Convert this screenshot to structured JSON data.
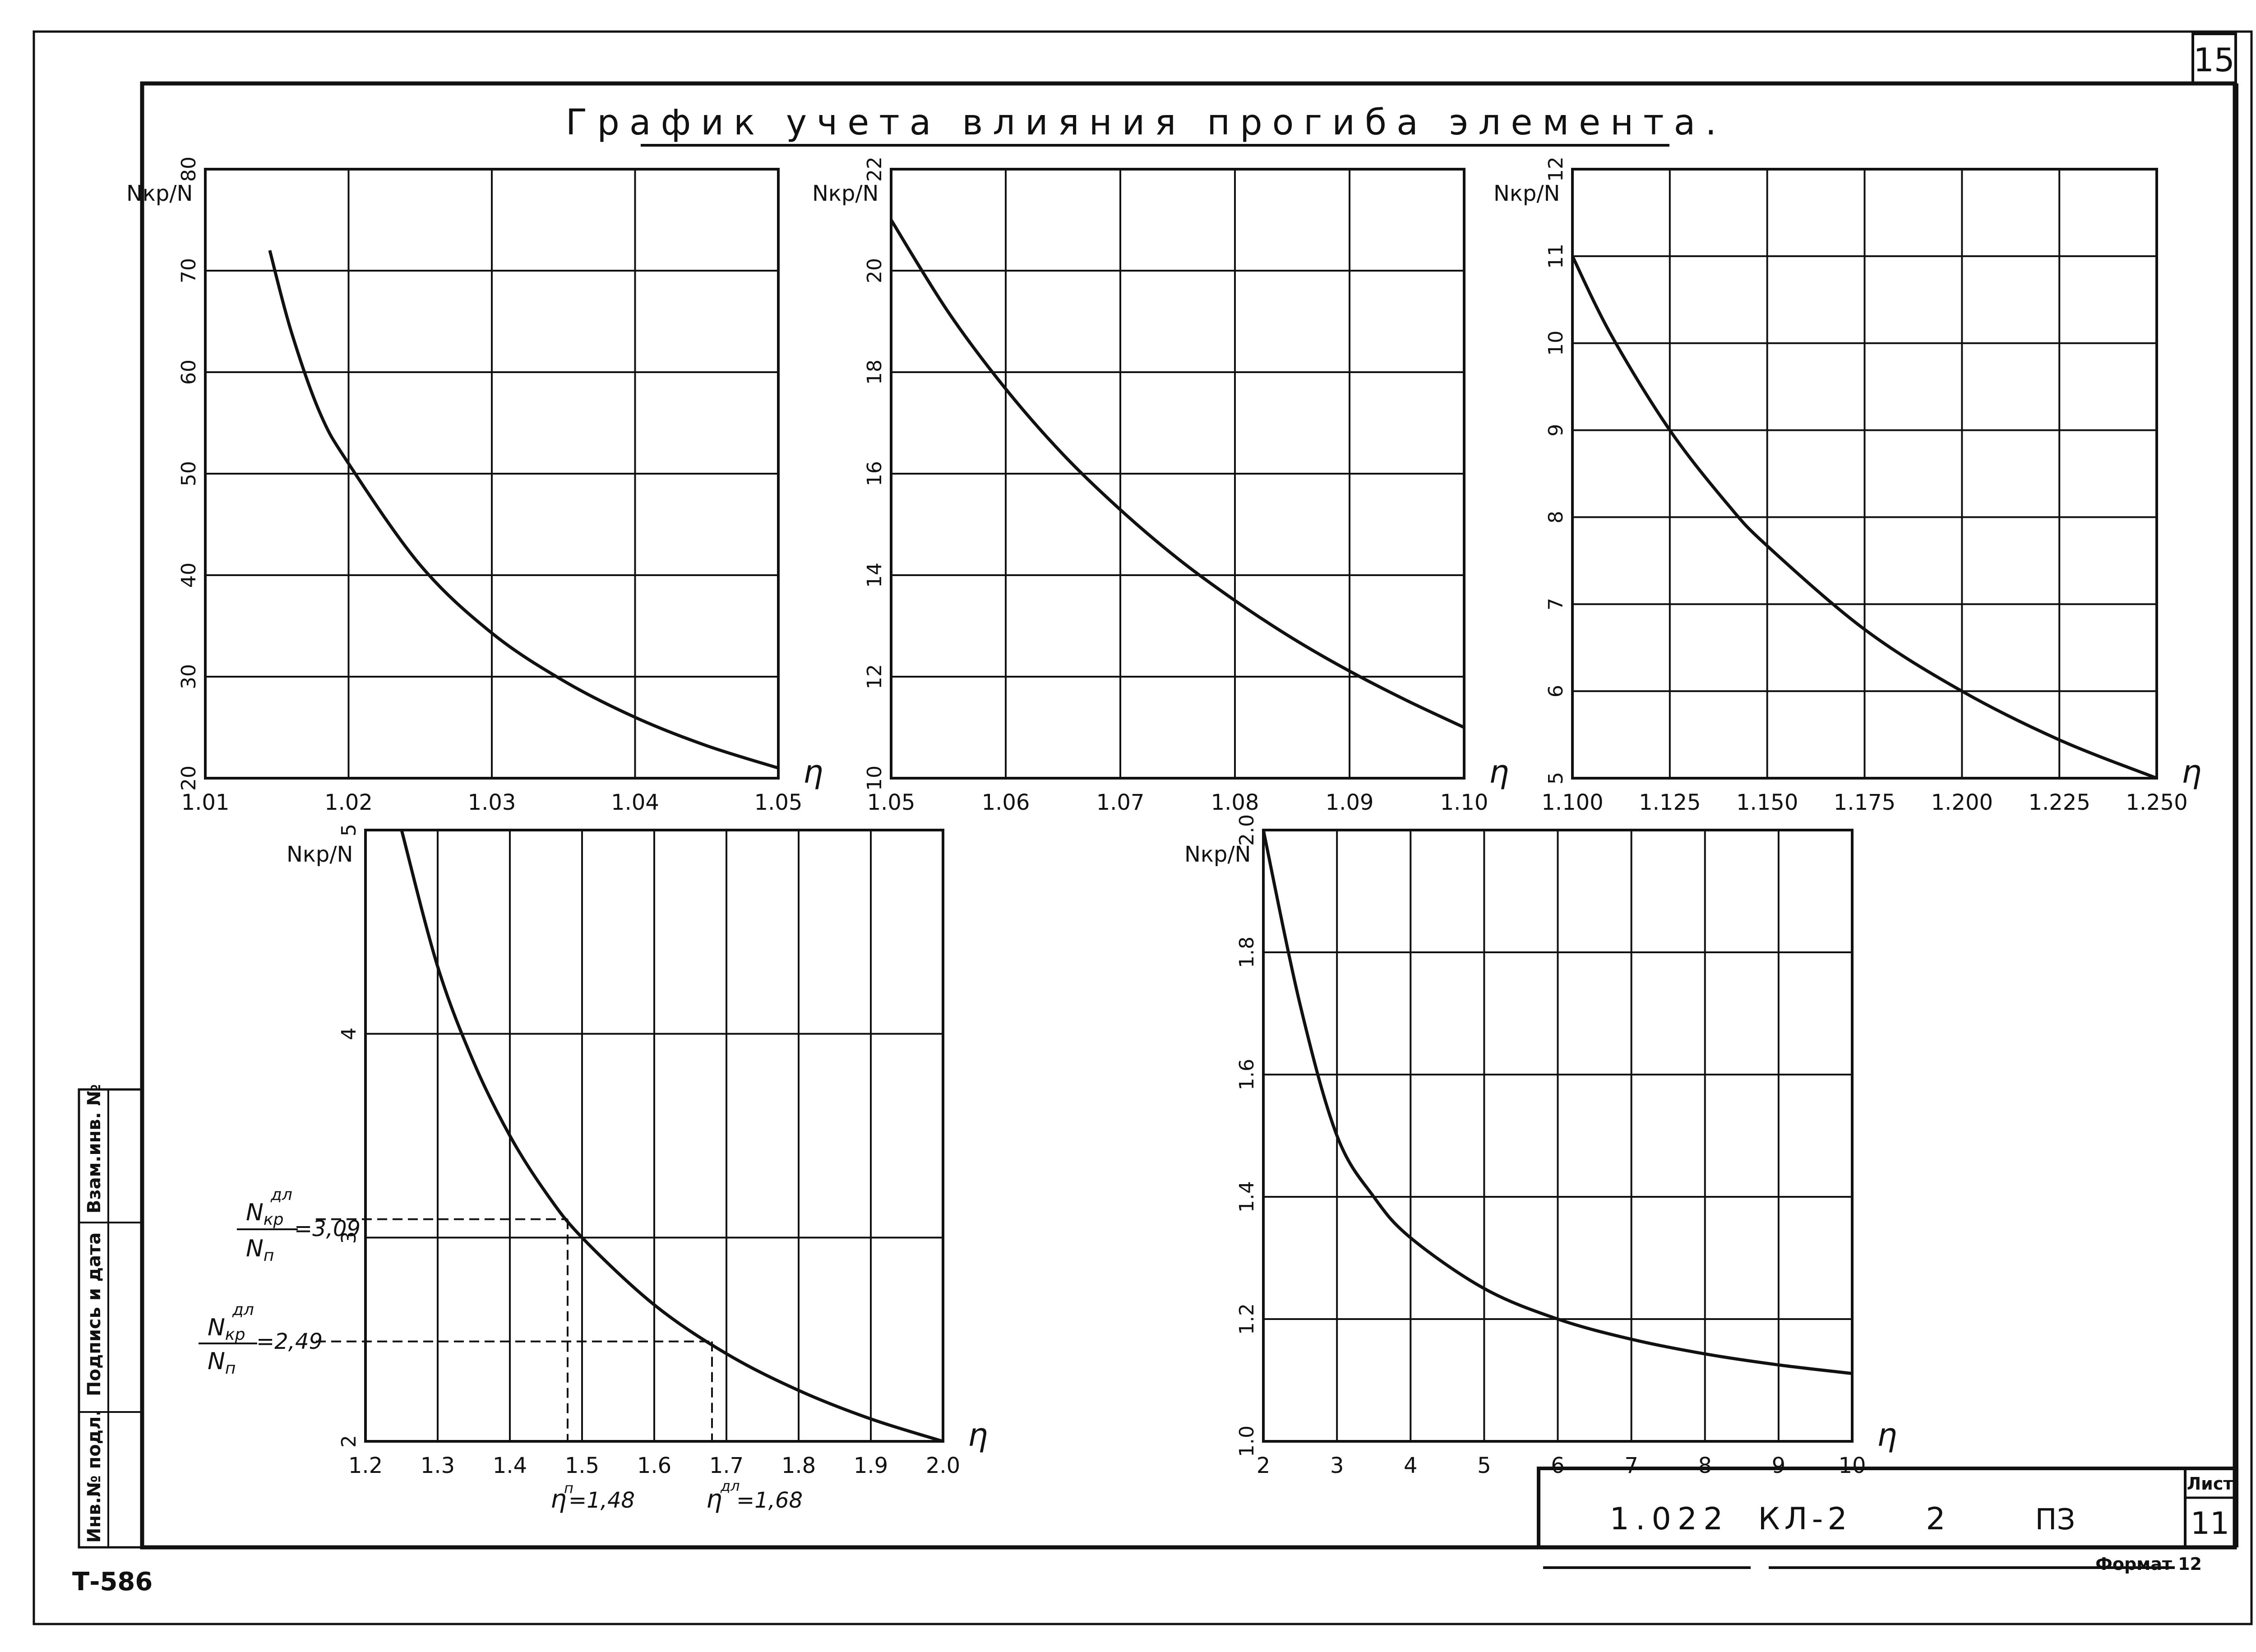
{
  "sheet": {
    "title": "График учета влияния прогиба элемента.",
    "page_number": "15",
    "doc_code_left": "Т-586",
    "format_label": "Формат 12",
    "stamp": {
      "code": "1.022",
      "series": "КЛ-2",
      "issue": "2",
      "doc_type": "ПЗ",
      "sheet_label": "Лист",
      "sheet_no": "11"
    },
    "side_stamp": {
      "inv_podl": "Инв.№ подл.",
      "podpis": "Подпись и дата",
      "vzam": "Взам.инв. №"
    },
    "annotations": {
      "ratio1_label": "=3,09",
      "ratio1_num": "N",
      "ratio1_num_sub": "кр",
      "ratio1_num_sup": "дл",
      "ratio1_den": "N",
      "ratio1_den_sub": "п",
      "ratio2_label": "=2,49",
      "ratio2_num": "N",
      "ratio2_num_sub": "кр",
      "ratio2_num_sup": "дл",
      "ratio2_den": "N",
      "ratio2_den_sub": "п",
      "eta1_label": "=1,48",
      "eta1_sym": "η",
      "eta1_sup": "п",
      "eta2_label": "=1,68",
      "eta2_sym": "η",
      "eta2_sup": "дл"
    },
    "colors": {
      "ink": "#111111",
      "paper": "#ffffff"
    }
  },
  "chart_data": [
    {
      "type": "line",
      "ylabel": "Nкр/N",
      "xlabel": "η",
      "xlim": [
        1.01,
        1.05
      ],
      "ylim": [
        20,
        80
      ],
      "xticks": [
        1.01,
        1.02,
        1.03,
        1.04,
        1.05
      ],
      "xtick_labels": [
        "1.01",
        "1.02",
        "1.03",
        "1.04",
        "1.05"
      ],
      "yticks": [
        20,
        30,
        40,
        50,
        60,
        70,
        80
      ],
      "ytick_labels": [
        "20",
        "30",
        "40",
        "50",
        "60",
        "70",
        "80"
      ],
      "grid": true,
      "series": [
        {
          "x": [
            1.0145,
            1.016,
            1.018,
            1.02,
            1.025,
            1.03,
            1.035,
            1.04,
            1.045,
            1.05
          ],
          "y": [
            72,
            64,
            56,
            51,
            41,
            34.3,
            29.6,
            26,
            23.2,
            21
          ]
        }
      ]
    },
    {
      "type": "line",
      "ylabel": "Nкр/N",
      "xlabel": "η",
      "xlim": [
        1.05,
        1.1
      ],
      "ylim": [
        10,
        22
      ],
      "xticks": [
        1.05,
        1.06,
        1.07,
        1.08,
        1.09,
        1.1
      ],
      "xtick_labels": [
        "1.05",
        "1.06",
        "1.07",
        "1.08",
        "1.09",
        "1.10"
      ],
      "yticks": [
        10,
        12,
        14,
        16,
        18,
        20,
        22
      ],
      "ytick_labels": [
        "10",
        "12",
        "14",
        "16",
        "18",
        "20",
        "22"
      ],
      "grid": true,
      "series": [
        {
          "x": [
            1.05,
            1.055,
            1.06,
            1.065,
            1.07,
            1.075,
            1.08,
            1.085,
            1.09,
            1.095,
            1.1
          ],
          "y": [
            21.0,
            19.18,
            17.67,
            16.38,
            15.29,
            14.33,
            13.5,
            12.76,
            12.11,
            11.53,
            11.0
          ]
        }
      ]
    },
    {
      "type": "line",
      "ylabel": "Nкр/N",
      "xlabel": "η",
      "xlim": [
        1.1,
        1.25
      ],
      "ylim": [
        5,
        12
      ],
      "xticks": [
        1.1,
        1.125,
        1.15,
        1.175,
        1.2,
        1.225,
        1.25
      ],
      "xtick_labels": [
        "1.100",
        "1.125",
        "1.150",
        "1.175",
        "1.200",
        "1.225",
        "1.250"
      ],
      "yticks": [
        5,
        6,
        7,
        8,
        9,
        10,
        11,
        12
      ],
      "ytick_labels": [
        "5",
        "6",
        "7",
        "8",
        "9",
        "10",
        "11",
        "12"
      ],
      "grid": true,
      "series": [
        {
          "x": [
            1.1,
            1.11,
            1.125,
            1.14,
            1.15,
            1.175,
            1.2,
            1.225,
            1.25
          ],
          "y": [
            11.0,
            10.09,
            9.0,
            8.14,
            7.67,
            6.71,
            6.0,
            5.44,
            5.0
          ]
        }
      ]
    },
    {
      "type": "line",
      "ylabel": "Nкр/N",
      "xlabel": "η",
      "xlim": [
        1.2,
        2.0
      ],
      "ylim": [
        2,
        5
      ],
      "xticks": [
        1.2,
        1.3,
        1.4,
        1.5,
        1.6,
        1.7,
        1.8,
        1.9,
        2.0
      ],
      "xtick_labels": [
        "1.2",
        "1.3",
        "1.4",
        "1.5",
        "1.6",
        "1.7",
        "1.8",
        "1.9",
        "2.0"
      ],
      "yticks": [
        2,
        3,
        4,
        5
      ],
      "ytick_labels": [
        "2",
        "3",
        "4",
        "5"
      ],
      "grid": true,
      "series": [
        {
          "x": [
            1.25,
            1.3,
            1.35,
            1.4,
            1.45,
            1.5,
            1.6,
            1.7,
            1.8,
            1.9,
            2.0
          ],
          "y": [
            5.0,
            4.33,
            3.86,
            3.5,
            3.22,
            3.0,
            2.67,
            2.43,
            2.25,
            2.11,
            2.0
          ]
        }
      ]
    },
    {
      "type": "line",
      "ylabel": "Nкр/N",
      "xlabel": "η",
      "xlim": [
        2,
        10
      ],
      "ylim": [
        1.0,
        2.0
      ],
      "xticks": [
        2,
        3,
        4,
        5,
        6,
        7,
        8,
        9,
        10
      ],
      "xtick_labels": [
        "2",
        "3",
        "4",
        "5",
        "6",
        "7",
        "8",
        "9",
        "10"
      ],
      "yticks": [
        1.0,
        1.2,
        1.4,
        1.6,
        1.8,
        2.0
      ],
      "ytick_labels": [
        "1.0",
        "1.2",
        "1.4",
        "1.6",
        "1.8",
        "2.0"
      ],
      "grid": true,
      "series": [
        {
          "x": [
            2,
            2.5,
            3,
            3.5,
            4,
            5,
            6,
            7,
            8,
            9,
            10
          ],
          "y": [
            2.0,
            1.714,
            1.5,
            1.4,
            1.333,
            1.25,
            1.2,
            1.167,
            1.143,
            1.125,
            1.111
          ]
        }
      ]
    }
  ]
}
